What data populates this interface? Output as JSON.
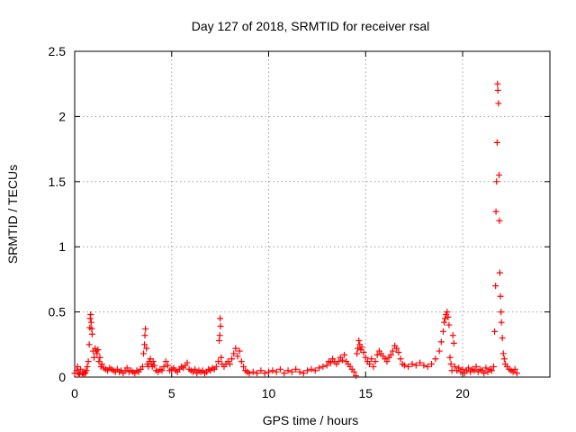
{
  "chart_data": {
    "type": "scatter",
    "title": "Day 127 of 2018, SRMTID for receiver rsal",
    "xlabel": "GPS time / hours",
    "ylabel": "SRMTID / TECUs",
    "xlim": [
      0,
      24.5
    ],
    "ylim": [
      0,
      2.5
    ],
    "grid": true,
    "marker": "+",
    "color": "#ff0000",
    "x_ticks": [
      0,
      5,
      10,
      15,
      20
    ],
    "x_tick_labels": [
      "0",
      "5",
      "10",
      "15",
      "20"
    ],
    "y_ticks": [
      0,
      0.5,
      1,
      1.5,
      2,
      2.5
    ],
    "y_tick_labels": [
      "0",
      "0.5",
      "1",
      "1.5",
      "2",
      "2.5"
    ],
    "series": [
      {
        "name": "SRMTID",
        "points": [
          [
            0.0,
            0.03
          ],
          [
            0.1,
            0.05
          ],
          [
            0.15,
            0.08
          ],
          [
            0.2,
            0.03
          ],
          [
            0.25,
            0.02
          ],
          [
            0.3,
            0.06
          ],
          [
            0.4,
            0.03
          ],
          [
            0.45,
            0.02
          ],
          [
            0.5,
            0.04
          ],
          [
            0.55,
            0.03
          ],
          [
            0.6,
            0.05
          ],
          [
            0.65,
            0.08
          ],
          [
            0.7,
            0.12
          ],
          [
            0.75,
            0.25
          ],
          [
            0.78,
            0.38
          ],
          [
            0.8,
            0.45
          ],
          [
            0.82,
            0.48
          ],
          [
            0.85,
            0.42
          ],
          [
            0.88,
            0.37
          ],
          [
            0.9,
            0.33
          ],
          [
            0.95,
            0.2
          ],
          [
            1.0,
            0.15
          ],
          [
            1.05,
            0.22
          ],
          [
            1.1,
            0.2
          ],
          [
            1.15,
            0.18
          ],
          [
            1.2,
            0.21
          ],
          [
            1.25,
            0.12
          ],
          [
            1.3,
            0.15
          ],
          [
            1.35,
            0.08
          ],
          [
            1.4,
            0.1
          ],
          [
            1.5,
            0.07
          ],
          [
            1.6,
            0.06
          ],
          [
            1.7,
            0.05
          ],
          [
            1.8,
            0.07
          ],
          [
            1.9,
            0.06
          ],
          [
            2.0,
            0.05
          ],
          [
            2.1,
            0.04
          ],
          [
            2.2,
            0.06
          ],
          [
            2.3,
            0.04
          ],
          [
            2.4,
            0.05
          ],
          [
            2.5,
            0.03
          ],
          [
            2.6,
            0.05
          ],
          [
            2.7,
            0.07
          ],
          [
            2.8,
            0.04
          ],
          [
            2.9,
            0.05
          ],
          [
            3.0,
            0.04
          ],
          [
            3.1,
            0.03
          ],
          [
            3.2,
            0.05
          ],
          [
            3.3,
            0.04
          ],
          [
            3.4,
            0.06
          ],
          [
            3.5,
            0.08
          ],
          [
            3.55,
            0.18
          ],
          [
            3.6,
            0.25
          ],
          [
            3.62,
            0.32
          ],
          [
            3.65,
            0.37
          ],
          [
            3.7,
            0.22
          ],
          [
            3.75,
            0.1
          ],
          [
            3.8,
            0.08
          ],
          [
            3.85,
            0.12
          ],
          [
            3.9,
            0.14
          ],
          [
            3.95,
            0.1
          ],
          [
            4.0,
            0.08
          ],
          [
            4.05,
            0.12
          ],
          [
            4.1,
            0.09
          ],
          [
            4.2,
            0.05
          ],
          [
            4.3,
            0.04
          ],
          [
            4.4,
            0.06
          ],
          [
            4.5,
            0.05
          ],
          [
            4.6,
            0.08
          ],
          [
            4.7,
            0.12
          ],
          [
            4.8,
            0.09
          ],
          [
            4.9,
            0.05
          ],
          [
            5.0,
            0.06
          ],
          [
            5.1,
            0.07
          ],
          [
            5.2,
            0.05
          ],
          [
            5.3,
            0.04
          ],
          [
            5.4,
            0.06
          ],
          [
            5.5,
            0.08
          ],
          [
            5.6,
            0.07
          ],
          [
            5.7,
            0.09
          ],
          [
            5.8,
            0.11
          ],
          [
            5.9,
            0.06
          ],
          [
            6.0,
            0.05
          ],
          [
            6.1,
            0.04
          ],
          [
            6.2,
            0.06
          ],
          [
            6.3,
            0.03
          ],
          [
            6.4,
            0.05
          ],
          [
            6.5,
            0.04
          ],
          [
            6.6,
            0.05
          ],
          [
            6.7,
            0.03
          ],
          [
            6.8,
            0.04
          ],
          [
            6.9,
            0.06
          ],
          [
            7.0,
            0.05
          ],
          [
            7.1,
            0.07
          ],
          [
            7.2,
            0.06
          ],
          [
            7.3,
            0.08
          ],
          [
            7.4,
            0.12
          ],
          [
            7.45,
            0.28
          ],
          [
            7.48,
            0.32
          ],
          [
            7.5,
            0.45
          ],
          [
            7.52,
            0.39
          ],
          [
            7.55,
            0.15
          ],
          [
            7.6,
            0.1
          ],
          [
            7.7,
            0.08
          ],
          [
            7.8,
            0.1
          ],
          [
            7.9,
            0.12
          ],
          [
            8.0,
            0.1
          ],
          [
            8.1,
            0.14
          ],
          [
            8.2,
            0.18
          ],
          [
            8.3,
            0.22
          ],
          [
            8.4,
            0.16
          ],
          [
            8.5,
            0.2
          ],
          [
            8.6,
            0.12
          ],
          [
            8.7,
            0.08
          ],
          [
            8.8,
            0.05
          ],
          [
            8.9,
            0.04
          ],
          [
            9.0,
            0.03
          ],
          [
            9.2,
            0.04
          ],
          [
            9.4,
            0.03
          ],
          [
            9.6,
            0.05
          ],
          [
            9.8,
            0.03
          ],
          [
            10.0,
            0.04
          ],
          [
            10.2,
            0.05
          ],
          [
            10.4,
            0.04
          ],
          [
            10.6,
            0.06
          ],
          [
            10.8,
            0.03
          ],
          [
            11.0,
            0.05
          ],
          [
            11.2,
            0.04
          ],
          [
            11.4,
            0.06
          ],
          [
            11.6,
            0.04
          ],
          [
            11.8,
            0.03
          ],
          [
            12.0,
            0.05
          ],
          [
            12.2,
            0.06
          ],
          [
            12.4,
            0.05
          ],
          [
            12.6,
            0.07
          ],
          [
            12.8,
            0.08
          ],
          [
            13.0,
            0.09
          ],
          [
            13.1,
            0.12
          ],
          [
            13.2,
            0.11
          ],
          [
            13.3,
            0.14
          ],
          [
            13.4,
            0.12
          ],
          [
            13.5,
            0.1
          ],
          [
            13.6,
            0.12
          ],
          [
            13.7,
            0.15
          ],
          [
            13.8,
            0.13
          ],
          [
            13.9,
            0.17
          ],
          [
            14.0,
            0.12
          ],
          [
            14.1,
            0.1
          ],
          [
            14.2,
            0.08
          ],
          [
            14.3,
            0.06
          ],
          [
            14.4,
            0.04
          ],
          [
            14.5,
            0.01
          ],
          [
            14.55,
            0.18
          ],
          [
            14.6,
            0.22
          ],
          [
            14.65,
            0.28
          ],
          [
            14.7,
            0.25
          ],
          [
            14.75,
            0.21
          ],
          [
            14.8,
            0.23
          ],
          [
            14.9,
            0.19
          ],
          [
            15.0,
            0.15
          ],
          [
            15.1,
            0.12
          ],
          [
            15.2,
            0.1
          ],
          [
            15.3,
            0.14
          ],
          [
            15.4,
            0.08
          ],
          [
            15.5,
            0.12
          ],
          [
            15.6,
            0.17
          ],
          [
            15.7,
            0.2
          ],
          [
            15.8,
            0.18
          ],
          [
            15.9,
            0.16
          ],
          [
            16.0,
            0.14
          ],
          [
            16.1,
            0.12
          ],
          [
            16.2,
            0.15
          ],
          [
            16.3,
            0.17
          ],
          [
            16.4,
            0.2
          ],
          [
            16.5,
            0.24
          ],
          [
            16.6,
            0.22
          ],
          [
            16.7,
            0.19
          ],
          [
            16.8,
            0.14
          ],
          [
            16.9,
            0.1
          ],
          [
            17.0,
            0.09
          ],
          [
            17.2,
            0.08
          ],
          [
            17.4,
            0.1
          ],
          [
            17.6,
            0.09
          ],
          [
            17.8,
            0.11
          ],
          [
            18.0,
            0.09
          ],
          [
            18.2,
            0.08
          ],
          [
            18.4,
            0.1
          ],
          [
            18.6,
            0.14
          ],
          [
            18.8,
            0.2
          ],
          [
            18.9,
            0.27
          ],
          [
            19.0,
            0.35
          ],
          [
            19.05,
            0.42
          ],
          [
            19.1,
            0.45
          ],
          [
            19.15,
            0.48
          ],
          [
            19.2,
            0.5
          ],
          [
            19.25,
            0.46
          ],
          [
            19.3,
            0.4
          ],
          [
            19.35,
            0.15
          ],
          [
            19.4,
            0.1
          ],
          [
            19.45,
            0.05
          ],
          [
            19.5,
            0.32
          ],
          [
            19.55,
            0.26
          ],
          [
            19.6,
            0.08
          ],
          [
            19.7,
            0.05
          ],
          [
            19.8,
            0.07
          ],
          [
            19.9,
            0.04
          ],
          [
            20.0,
            0.06
          ],
          [
            20.1,
            0.03
          ],
          [
            20.2,
            0.05
          ],
          [
            20.3,
            0.07
          ],
          [
            20.4,
            0.04
          ],
          [
            20.5,
            0.06
          ],
          [
            20.6,
            0.05
          ],
          [
            20.7,
            0.08
          ],
          [
            20.8,
            0.04
          ],
          [
            20.9,
            0.06
          ],
          [
            21.0,
            0.05
          ],
          [
            21.1,
            0.03
          ],
          [
            21.2,
            0.07
          ],
          [
            21.3,
            0.04
          ],
          [
            21.4,
            0.06
          ],
          [
            21.5,
            0.05
          ],
          [
            21.6,
            0.08
          ],
          [
            21.65,
            0.35
          ],
          [
            21.7,
            0.7
          ],
          [
            21.72,
            1.27
          ],
          [
            21.75,
            1.5
          ],
          [
            21.78,
            1.8
          ],
          [
            21.8,
            2.25
          ],
          [
            21.82,
            2.2
          ],
          [
            21.85,
            2.1
          ],
          [
            21.88,
            1.55
          ],
          [
            21.9,
            1.2
          ],
          [
            21.92,
            0.8
          ],
          [
            21.95,
            0.62
          ],
          [
            21.98,
            0.5
          ],
          [
            22.0,
            0.42
          ],
          [
            22.05,
            0.3
          ],
          [
            22.1,
            0.18
          ],
          [
            22.15,
            0.14
          ],
          [
            22.2,
            0.1
          ],
          [
            22.3,
            0.08
          ],
          [
            22.4,
            0.06
          ],
          [
            22.5,
            0.05
          ],
          [
            22.6,
            0.04
          ],
          [
            22.7,
            0.06
          ],
          [
            22.8,
            0.03
          ]
        ]
      }
    ]
  }
}
